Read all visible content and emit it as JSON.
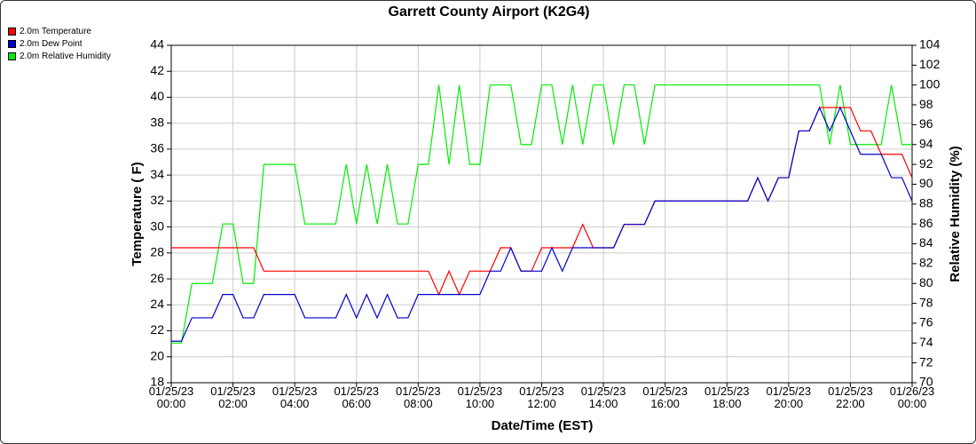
{
  "chart_data": {
    "type": "line",
    "title": "Garrett County Airport (K2G4)",
    "x_label": "Date/Time (EST)",
    "y_label": "Temperature ( F)",
    "y2_label": "Relative Humidity (%)",
    "grid": true,
    "legend": "top-left",
    "xlim": [
      0,
      24
    ],
    "xticks": [
      {
        "value": 0,
        "label": "01/25/23\n00:00"
      },
      {
        "value": 2,
        "label": "01/25/23\n02:00"
      },
      {
        "value": 4,
        "label": "01/25/23\n04:00"
      },
      {
        "value": 6,
        "label": "01/25/23\n06:00"
      },
      {
        "value": 8,
        "label": "01/25/23\n08:00"
      },
      {
        "value": 10,
        "label": "01/25/23\n10:00"
      },
      {
        "value": 12,
        "label": "01/25/23\n12:00"
      },
      {
        "value": 14,
        "label": "01/25/23\n14:00"
      },
      {
        "value": 16,
        "label": "01/25/23\n16:00"
      },
      {
        "value": 18,
        "label": "01/25/23\n18:00"
      },
      {
        "value": 20,
        "label": "01/25/23\n20:00"
      },
      {
        "value": 22,
        "label": "01/25/23\n22:00"
      },
      {
        "value": 24,
        "label": "01/26/23\n00:00"
      }
    ],
    "ylim": [
      18,
      44
    ],
    "yticks": [
      18,
      20,
      22,
      24,
      26,
      28,
      30,
      32,
      34,
      36,
      38,
      40,
      42,
      44
    ],
    "y2lim": [
      70,
      104
    ],
    "y2ticks": [
      70,
      72,
      74,
      76,
      78,
      80,
      82,
      84,
      86,
      88,
      90,
      92,
      94,
      96,
      98,
      100,
      102,
      104
    ],
    "x": [
      0,
      0.33,
      0.67,
      1,
      1.33,
      1.67,
      2,
      2.33,
      2.67,
      3,
      3.33,
      3.67,
      4,
      4.33,
      4.67,
      5,
      5.33,
      5.67,
      6,
      6.33,
      6.67,
      7,
      7.33,
      7.67,
      8,
      8.33,
      8.67,
      9,
      9.33,
      9.67,
      10,
      10.33,
      10.67,
      11,
      11.33,
      11.67,
      12,
      12.33,
      12.67,
      13,
      13.33,
      13.67,
      14,
      14.33,
      14.67,
      15,
      15.33,
      15.67,
      16,
      16.33,
      16.67,
      17,
      17.33,
      17.67,
      18,
      18.33,
      18.67,
      19,
      19.33,
      19.67,
      20,
      20.33,
      20.67,
      21,
      21.33,
      21.67,
      22,
      22.33,
      22.67,
      23,
      23.33,
      23.67,
      24
    ],
    "series": [
      {
        "name": "2.0m Temperature",
        "color": "#ff0000",
        "values": [
          28.4,
          28.4,
          28.4,
          28.4,
          28.4,
          28.4,
          28.4,
          28.4,
          28.4,
          26.6,
          26.6,
          26.6,
          26.6,
          26.6,
          26.6,
          26.6,
          26.6,
          26.6,
          26.6,
          26.6,
          26.6,
          26.6,
          26.6,
          26.6,
          26.6,
          26.6,
          24.8,
          26.6,
          24.8,
          26.6,
          26.6,
          26.6,
          28.4,
          28.4,
          26.6,
          26.6,
          28.4,
          28.4,
          28.4,
          28.4,
          30.2,
          28.4,
          28.4,
          28.4,
          30.2,
          30.2,
          30.2,
          32,
          32,
          32,
          32,
          32,
          32,
          32,
          32,
          32,
          32,
          33.8,
          32,
          33.8,
          33.8,
          37.4,
          37.4,
          39.2,
          39.2,
          39.2,
          39.2,
          37.4,
          37.4,
          35.6,
          35.6,
          35.6,
          33.8
        ]
      },
      {
        "name": "2.0m Dew Point",
        "color": "#0000cc",
        "values": [
          21.2,
          21.2,
          23,
          23,
          23,
          24.8,
          24.8,
          23,
          23,
          24.8,
          24.8,
          24.8,
          24.8,
          23,
          23,
          23,
          23,
          24.8,
          23,
          24.8,
          23,
          24.8,
          23,
          23,
          24.8,
          24.8,
          24.8,
          24.8,
          24.8,
          24.8,
          24.8,
          26.6,
          26.6,
          28.4,
          26.6,
          26.6,
          26.6,
          28.4,
          26.6,
          28.4,
          28.4,
          28.4,
          28.4,
          28.4,
          30.2,
          30.2,
          30.2,
          32,
          32,
          32,
          32,
          32,
          32,
          32,
          32,
          32,
          32,
          33.8,
          32,
          33.8,
          33.8,
          37.4,
          37.4,
          39.2,
          37.4,
          39.2,
          37.4,
          35.6,
          35.6,
          35.6,
          33.8,
          33.8,
          32
        ]
      },
      {
        "name": "2.0m Relative Humidity",
        "color": "#00ee00",
        "axis": "y2",
        "values": [
          74,
          74,
          80,
          80,
          80,
          86,
          86,
          80,
          80,
          92,
          92,
          92,
          92,
          86,
          86,
          86,
          86,
          92,
          86,
          92,
          86,
          92,
          86,
          86,
          92,
          92,
          100,
          92,
          100,
          92,
          92,
          100,
          100,
          100,
          94,
          94,
          100,
          100,
          94,
          100,
          94,
          100,
          100,
          94,
          100,
          100,
          94,
          100,
          100,
          100,
          100,
          100,
          100,
          100,
          100,
          100,
          100,
          100,
          100,
          100,
          100,
          100,
          100,
          100,
          94,
          100,
          94,
          94,
          94,
          94,
          100,
          94,
          94
        ]
      }
    ]
  }
}
